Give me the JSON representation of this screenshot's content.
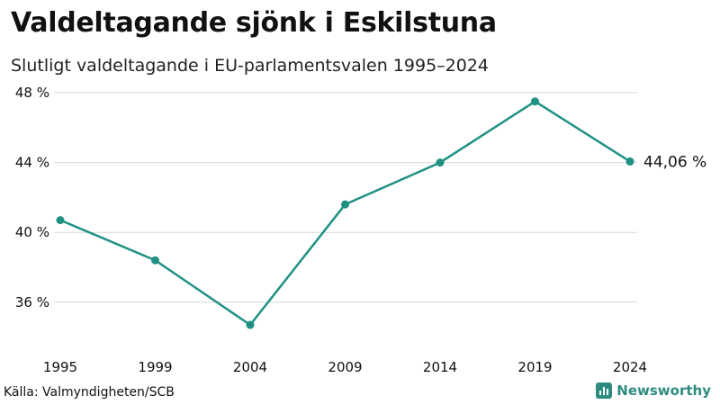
{
  "title": "Valdeltagande sjönk i Eskilstuna",
  "subtitle": "Slutligt valdeltagande i EU-parlamentsvalen 1995–2024",
  "source": "Källa: Valmyndigheten/SCB",
  "brand": "Newsworthy",
  "colors": {
    "line": "#1f9183",
    "grid": "#d9d9d9",
    "brand": "#2e8b80"
  },
  "chart_data": {
    "type": "line",
    "x": [
      "1995",
      "1999",
      "2004",
      "2009",
      "2014",
      "2019",
      "2024"
    ],
    "series": [
      {
        "values": [
          40.7,
          38.4,
          34.7,
          41.6,
          44.0,
          47.5,
          44.06
        ]
      }
    ],
    "ylim": [
      34,
      48
    ],
    "yticks": [
      36,
      40,
      44,
      48
    ],
    "ytick_labels": [
      "36 %",
      "40 %",
      "44 %",
      "48 %"
    ],
    "end_label": "44,06 %",
    "grid": true,
    "xlabel": "",
    "ylabel": ""
  }
}
